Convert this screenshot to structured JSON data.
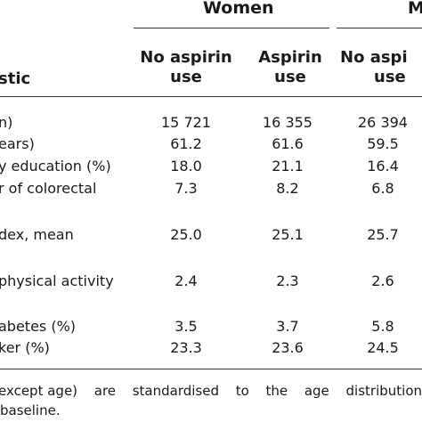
{
  "groups": {
    "women": "Women",
    "men_partial": "M"
  },
  "columns": [
    {
      "line1": "No aspirin",
      "line2": "use"
    },
    {
      "line1": "Aspirin",
      "line2": "use"
    },
    {
      "line1": "No aspi",
      "line2": "use"
    }
  ],
  "row_header": "stic",
  "rows": [
    {
      "label": "n)",
      "values": [
        "15 721",
        "16 355",
        "26 394"
      ]
    },
    {
      "label": "ears)",
      "values": [
        "61.2",
        "61.6",
        "59.5"
      ]
    },
    {
      "label": "y education (%)",
      "values": [
        "18.0",
        "21.1",
        "16.4"
      ]
    },
    {
      "label": "r of colorectal",
      "values": [
        "7.3",
        "8.2",
        "6.8"
      ]
    },
    {
      "label": "dex, mean",
      "values": [
        "25.0",
        "25.1",
        "25.7"
      ]
    },
    {
      "label": "physical activity",
      "values": [
        "2.4",
        "2.3",
        "2.6"
      ]
    },
    {
      "label": "abetes (%)",
      "values": [
        "3.5",
        "3.7",
        "5.8"
      ]
    },
    {
      "label": "ker (%)",
      "values": [
        "23.3",
        "23.6",
        "24.5"
      ]
    }
  ],
  "footnote": {
    "line1_left": "except age)",
    "line1_mid": "are",
    "line1_mid2": "standardised",
    "line1_mid3": "to",
    "line1_mid4": "the",
    "line1_mid5": "age",
    "line1_right": "distribution",
    "line2": "baseline."
  }
}
